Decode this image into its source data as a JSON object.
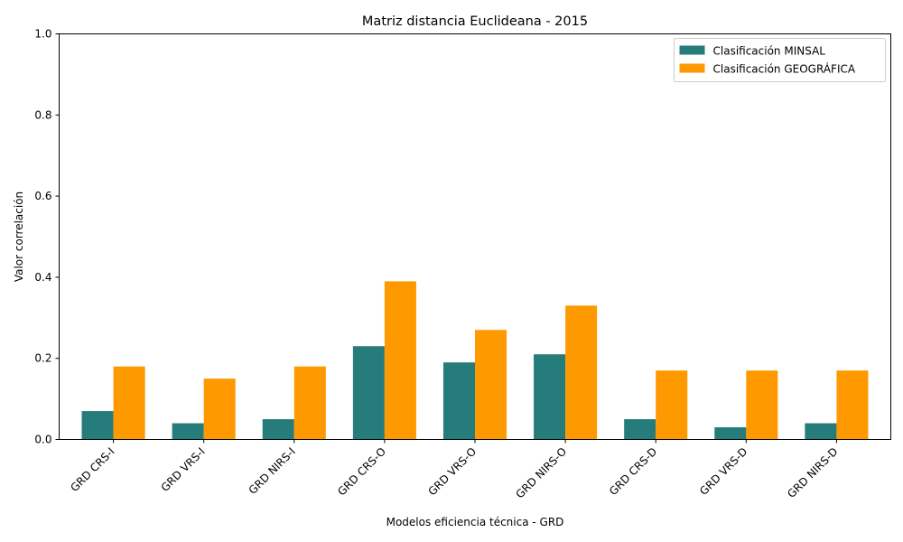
{
  "chart_data": {
    "type": "bar",
    "title": "Matriz distancia Euclideana - 2015",
    "xlabel": "Modelos eficiencia técnica - GRD",
    "ylabel": "Valor correlación",
    "ylim": [
      0,
      1.0
    ],
    "yticks": [
      0.0,
      0.2,
      0.4,
      0.6,
      0.8,
      1.0
    ],
    "ytick_labels": [
      "0.0",
      "0.2",
      "0.4",
      "0.6",
      "0.8",
      "1.0"
    ],
    "categories": [
      "GRD CRS-I",
      "GRD VRS-I",
      "GRD NIRS-I",
      "GRD CRS-O",
      "GRD VRS-O",
      "GRD NIRS-O",
      "GRD CRS-D",
      "GRD VRS-D",
      "GRD NIRS-D"
    ],
    "series": [
      {
        "name": "Clasificación MINSAL",
        "color": "#267b7b",
        "values": [
          0.07,
          0.04,
          0.05,
          0.23,
          0.19,
          0.21,
          0.05,
          0.03,
          0.04
        ]
      },
      {
        "name": "Clasificación GEOGRÁFICA",
        "color": "#ff9900",
        "values": [
          0.18,
          0.15,
          0.18,
          0.39,
          0.27,
          0.33,
          0.17,
          0.17,
          0.17
        ]
      }
    ],
    "grid": false,
    "legend_position": "top-right"
  }
}
